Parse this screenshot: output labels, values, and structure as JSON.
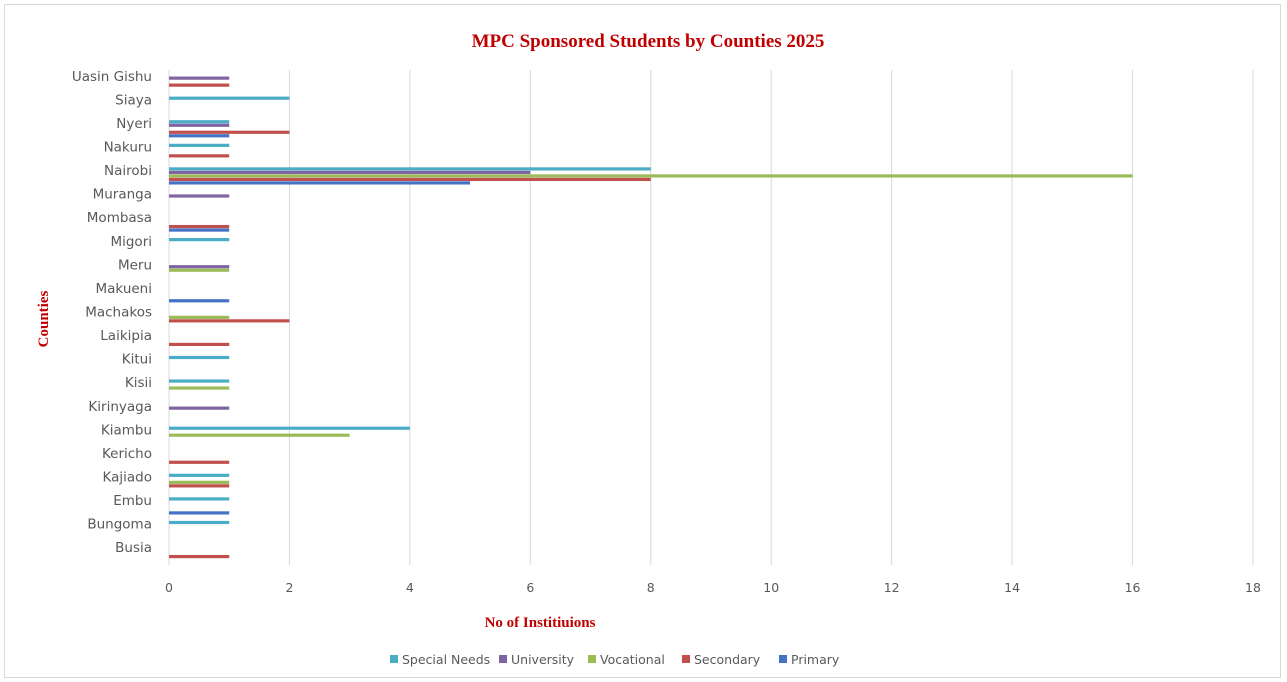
{
  "chart_data": {
    "type": "bar",
    "orientation": "horizontal",
    "title": "MPC Sponsored Students by Counties 2025",
    "xlabel": "No of Institiuions",
    "ylabel": "Counties",
    "xlim": [
      0,
      18
    ],
    "xticks": [
      "0",
      "2",
      "4",
      "6",
      "8",
      "10",
      "12",
      "14",
      "16",
      "18"
    ],
    "grid": "vertical",
    "legend_position": "bottom",
    "categories": [
      "Busia",
      "Bungoma",
      "Embu",
      "Kajiado",
      "Kericho",
      "Kiambu",
      "Kirinyaga",
      "Kisii",
      "Kitui",
      "Laikipia",
      "Machakos",
      "Makueni",
      "Meru",
      "Migori",
      "Mombasa",
      "Muranga",
      "Nairobi",
      "Nakuru",
      "Nyeri",
      "Siaya",
      "Uasin Gishu"
    ],
    "series": [
      {
        "name": "Primary",
        "color": "#4472c4",
        "values": [
          0,
          0,
          1,
          0,
          0,
          0,
          0,
          0,
          0,
          0,
          0,
          1,
          0,
          0,
          1,
          0,
          5,
          0,
          1,
          0,
          0
        ]
      },
      {
        "name": "Secondary",
        "color": "#c0504d",
        "values": [
          1,
          0,
          0,
          1,
          1,
          0,
          0,
          0,
          0,
          1,
          2,
          0,
          0,
          0,
          1,
          0,
          8,
          1,
          2,
          0,
          1
        ]
      },
      {
        "name": "Vocational",
        "color": "#9bbb59",
        "values": [
          0,
          0,
          0,
          1,
          0,
          3,
          0,
          1,
          0,
          0,
          1,
          0,
          1,
          0,
          0,
          0,
          16,
          0,
          0,
          0,
          0
        ]
      },
      {
        "name": "University",
        "color": "#8064a2",
        "values": [
          0,
          0,
          0,
          0,
          0,
          0,
          1,
          0,
          0,
          0,
          0,
          0,
          1,
          0,
          0,
          1,
          6,
          0,
          1,
          0,
          1
        ]
      },
      {
        "name": "Special Needs",
        "color": "#4bacc6",
        "values": [
          0,
          1,
          1,
          1,
          0,
          4,
          0,
          1,
          1,
          0,
          0,
          0,
          0,
          1,
          0,
          0,
          8,
          1,
          1,
          2,
          0
        ]
      }
    ],
    "legend_order": [
      "Special Needs",
      "University",
      "Vocational",
      "Secondary",
      "Primary"
    ]
  }
}
